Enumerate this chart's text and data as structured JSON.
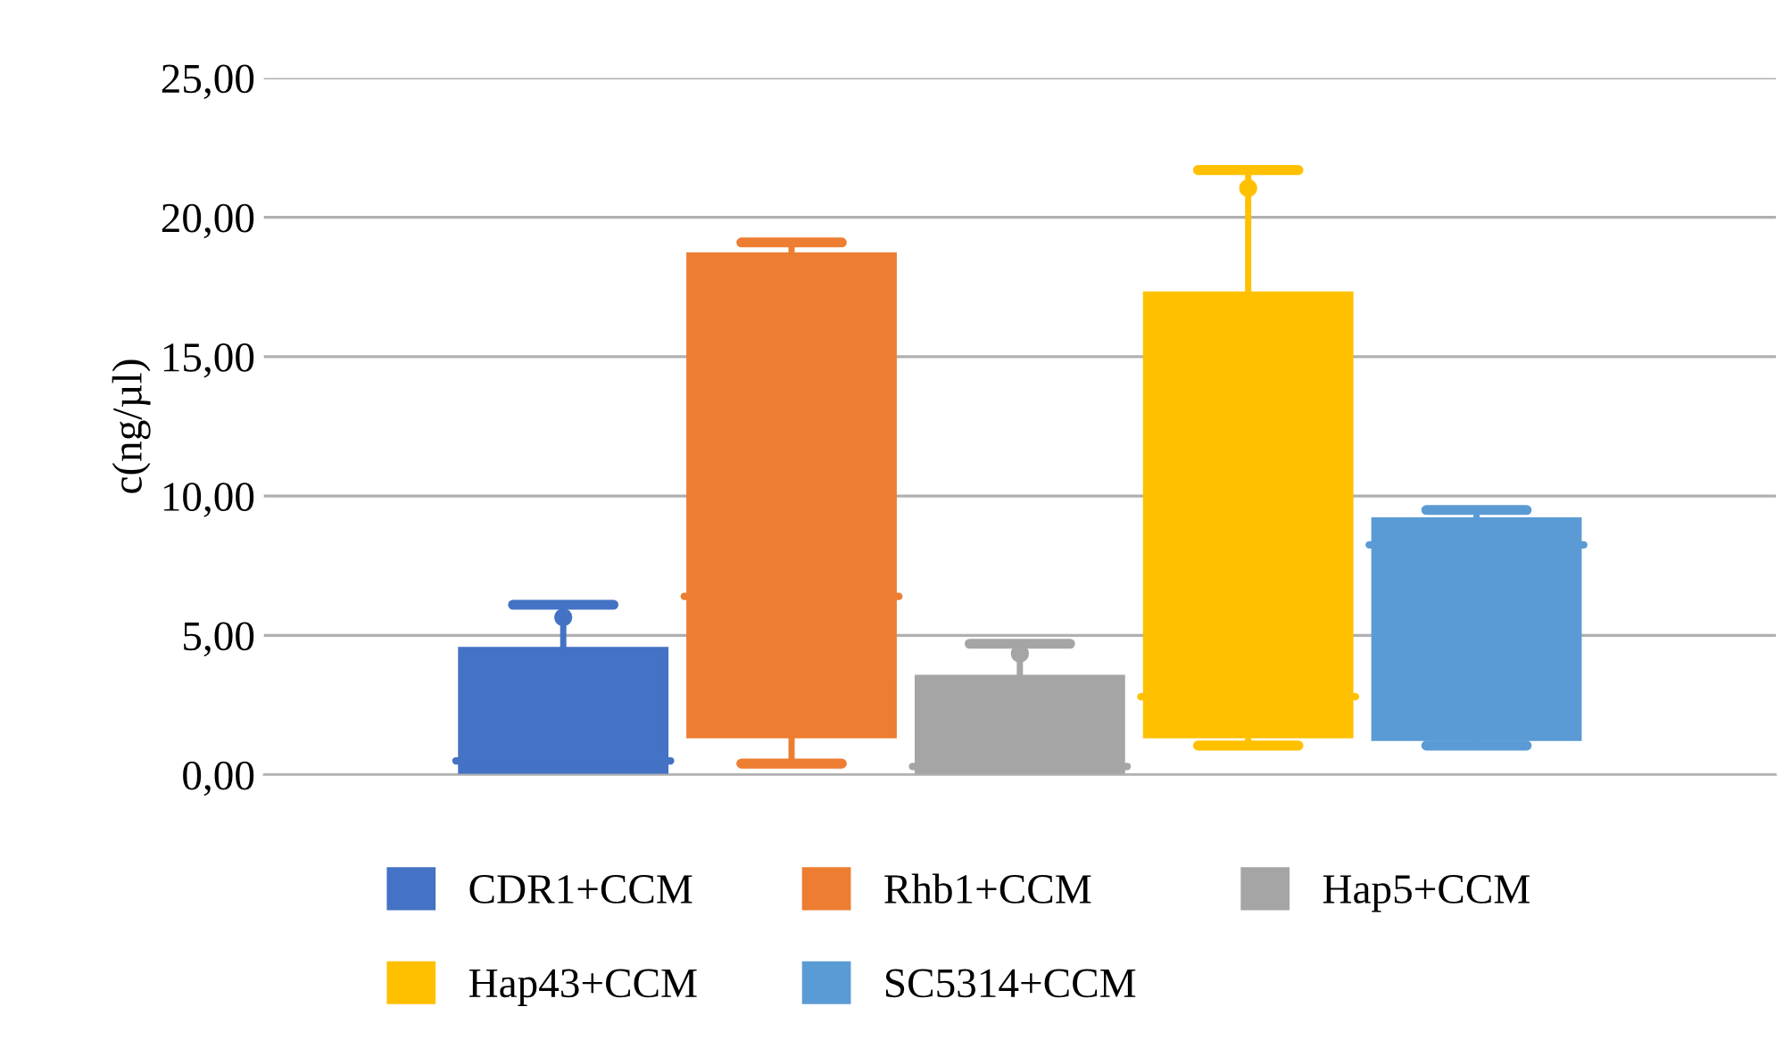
{
  "chart_data": {
    "type": "box",
    "ylabel": "c(ng/µl)",
    "categories": [
      null
    ],
    "ylim": [
      0,
      25
    ],
    "yticks": [
      {
        "value": 0,
        "label": "0,00"
      },
      {
        "value": 5,
        "label": "5,00"
      },
      {
        "value": 10,
        "label": "10,00"
      },
      {
        "value": 15,
        "label": "15,00"
      },
      {
        "value": 20,
        "label": "20,00"
      },
      {
        "value": 25,
        "label": "25,00"
      }
    ],
    "grid": "y",
    "legend": "bottom",
    "series": [
      {
        "name": "CDR1+CCM",
        "color": "#4472c4",
        "boxes": [
          {
            "low": 0,
            "q1": 0.05,
            "median": 0.5,
            "q3": 4.5,
            "high": 6.1,
            "mean": 5.65
          }
        ]
      },
      {
        "name": "Rhb1+CCM",
        "color": "#ed7d31",
        "boxes": [
          {
            "low": 0.4,
            "q1": 1.4,
            "median": 6.4,
            "q3": 18.65,
            "high": 19.1
          }
        ]
      },
      {
        "name": "Hap5+CCM",
        "color": "#a5a5a5",
        "boxes": [
          {
            "low": 0,
            "q1": 0.05,
            "median": 0.3,
            "q3": 3.5,
            "high": 4.7,
            "mean": 4.35
          }
        ]
      },
      {
        "name": "Hap43+CCM",
        "color": "#ffc000",
        "boxes": [
          {
            "low": 1.05,
            "q1": 1.4,
            "median": 2.8,
            "q3": 17.25,
            "high": 21.7,
            "mean": 21.05
          }
        ]
      },
      {
        "name": "SC5314+CCM",
        "color": "#5b9bd5",
        "boxes": [
          {
            "low": 1.05,
            "q1": 1.3,
            "median": 8.25,
            "q3": 9.15,
            "high": 9.5
          }
        ]
      }
    ]
  }
}
